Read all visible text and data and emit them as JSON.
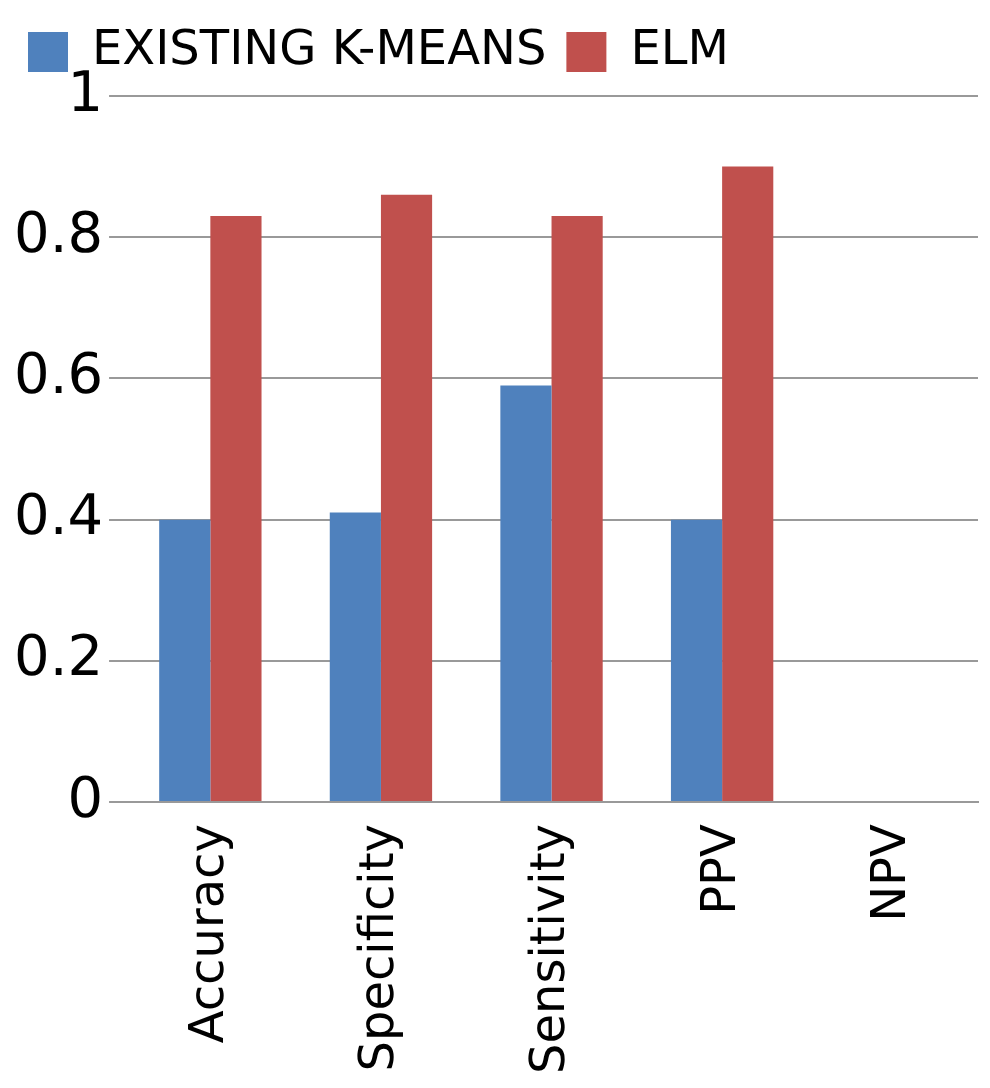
{
  "chart_data": {
    "type": "bar",
    "categories": [
      "Accuracy",
      "Specificity",
      "Sensitivity",
      "PPV",
      "NPV"
    ],
    "series": [
      {
        "name": "EXISTING K-MEANS",
        "color": "#4f81bd",
        "values": [
          0.4,
          0.41,
          0.59,
          0.4,
          null
        ]
      },
      {
        "name": "ELM",
        "color": "#c0504d",
        "values": [
          0.83,
          0.86,
          0.83,
          0.9,
          null
        ]
      }
    ],
    "ylim": [
      0,
      1
    ],
    "yticks": [
      0,
      0.2,
      0.4,
      0.6,
      0.8,
      1
    ],
    "grid": "y",
    "legend": "top left"
  }
}
